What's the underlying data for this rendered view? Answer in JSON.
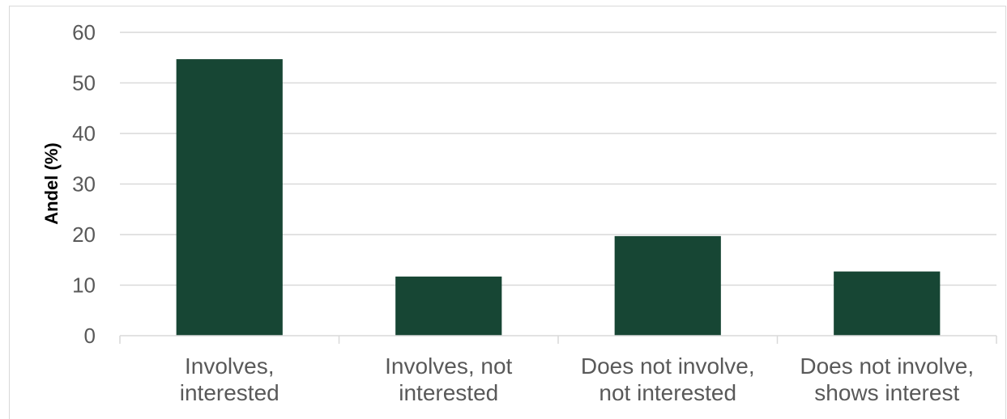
{
  "chart_data": {
    "type": "bar",
    "categories": [
      [
        "Involves,",
        "interested"
      ],
      [
        "Involves, not",
        "interested"
      ],
      [
        "Does not involve,",
        "not interested"
      ],
      [
        "Does not involve,",
        "shows interest"
      ]
    ],
    "values": [
      54.7,
      11.7,
      19.7,
      12.7
    ],
    "title": "",
    "xlabel": "",
    "ylabel": "Andel (%)",
    "ylim": [
      0,
      60
    ],
    "yticks": [
      "0",
      "10",
      "20",
      "30",
      "40",
      "50",
      "60"
    ],
    "grid": true,
    "legend": "none",
    "bar_color": "#174634",
    "grid_color": "#d9d9d9"
  }
}
